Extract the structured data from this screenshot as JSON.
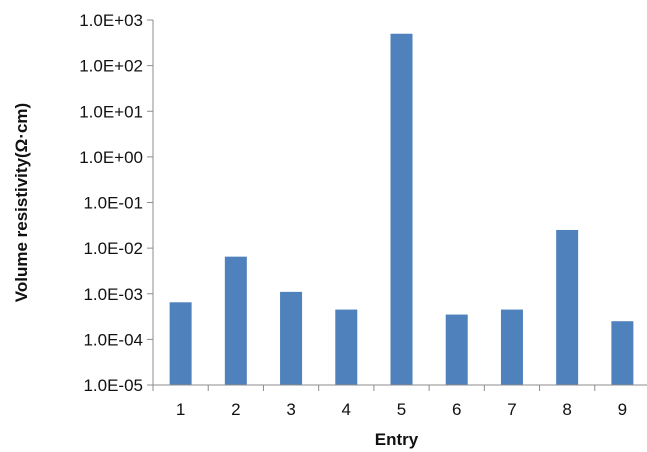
{
  "chart_data": {
    "type": "bar",
    "xlabel": "Entry",
    "ylabel": "Volume resistivity(Ω·cm)",
    "y_scale": "log",
    "ylim": [
      1e-05,
      1000
    ],
    "grid": false,
    "legend": "none",
    "bar_color": "#4f81bd",
    "categories": [
      "1",
      "2",
      "3",
      "4",
      "5",
      "6",
      "7",
      "8",
      "9"
    ],
    "values": [
      0.00065,
      0.0065,
      0.0011,
      0.00045,
      500,
      0.00035,
      0.00045,
      0.025,
      0.00025
    ],
    "y_tick_values": [
      1e-05,
      0.0001,
      0.001,
      0.01,
      0.1,
      1,
      10,
      100,
      1000
    ],
    "y_tick_labels": [
      "1.0E-05",
      "1.0E-04",
      "1.0E-03",
      "1.0E-02",
      "1.0E-01",
      "1.0E+00",
      "1.0E+01",
      "1.0E+02",
      "1.0E+03"
    ]
  }
}
